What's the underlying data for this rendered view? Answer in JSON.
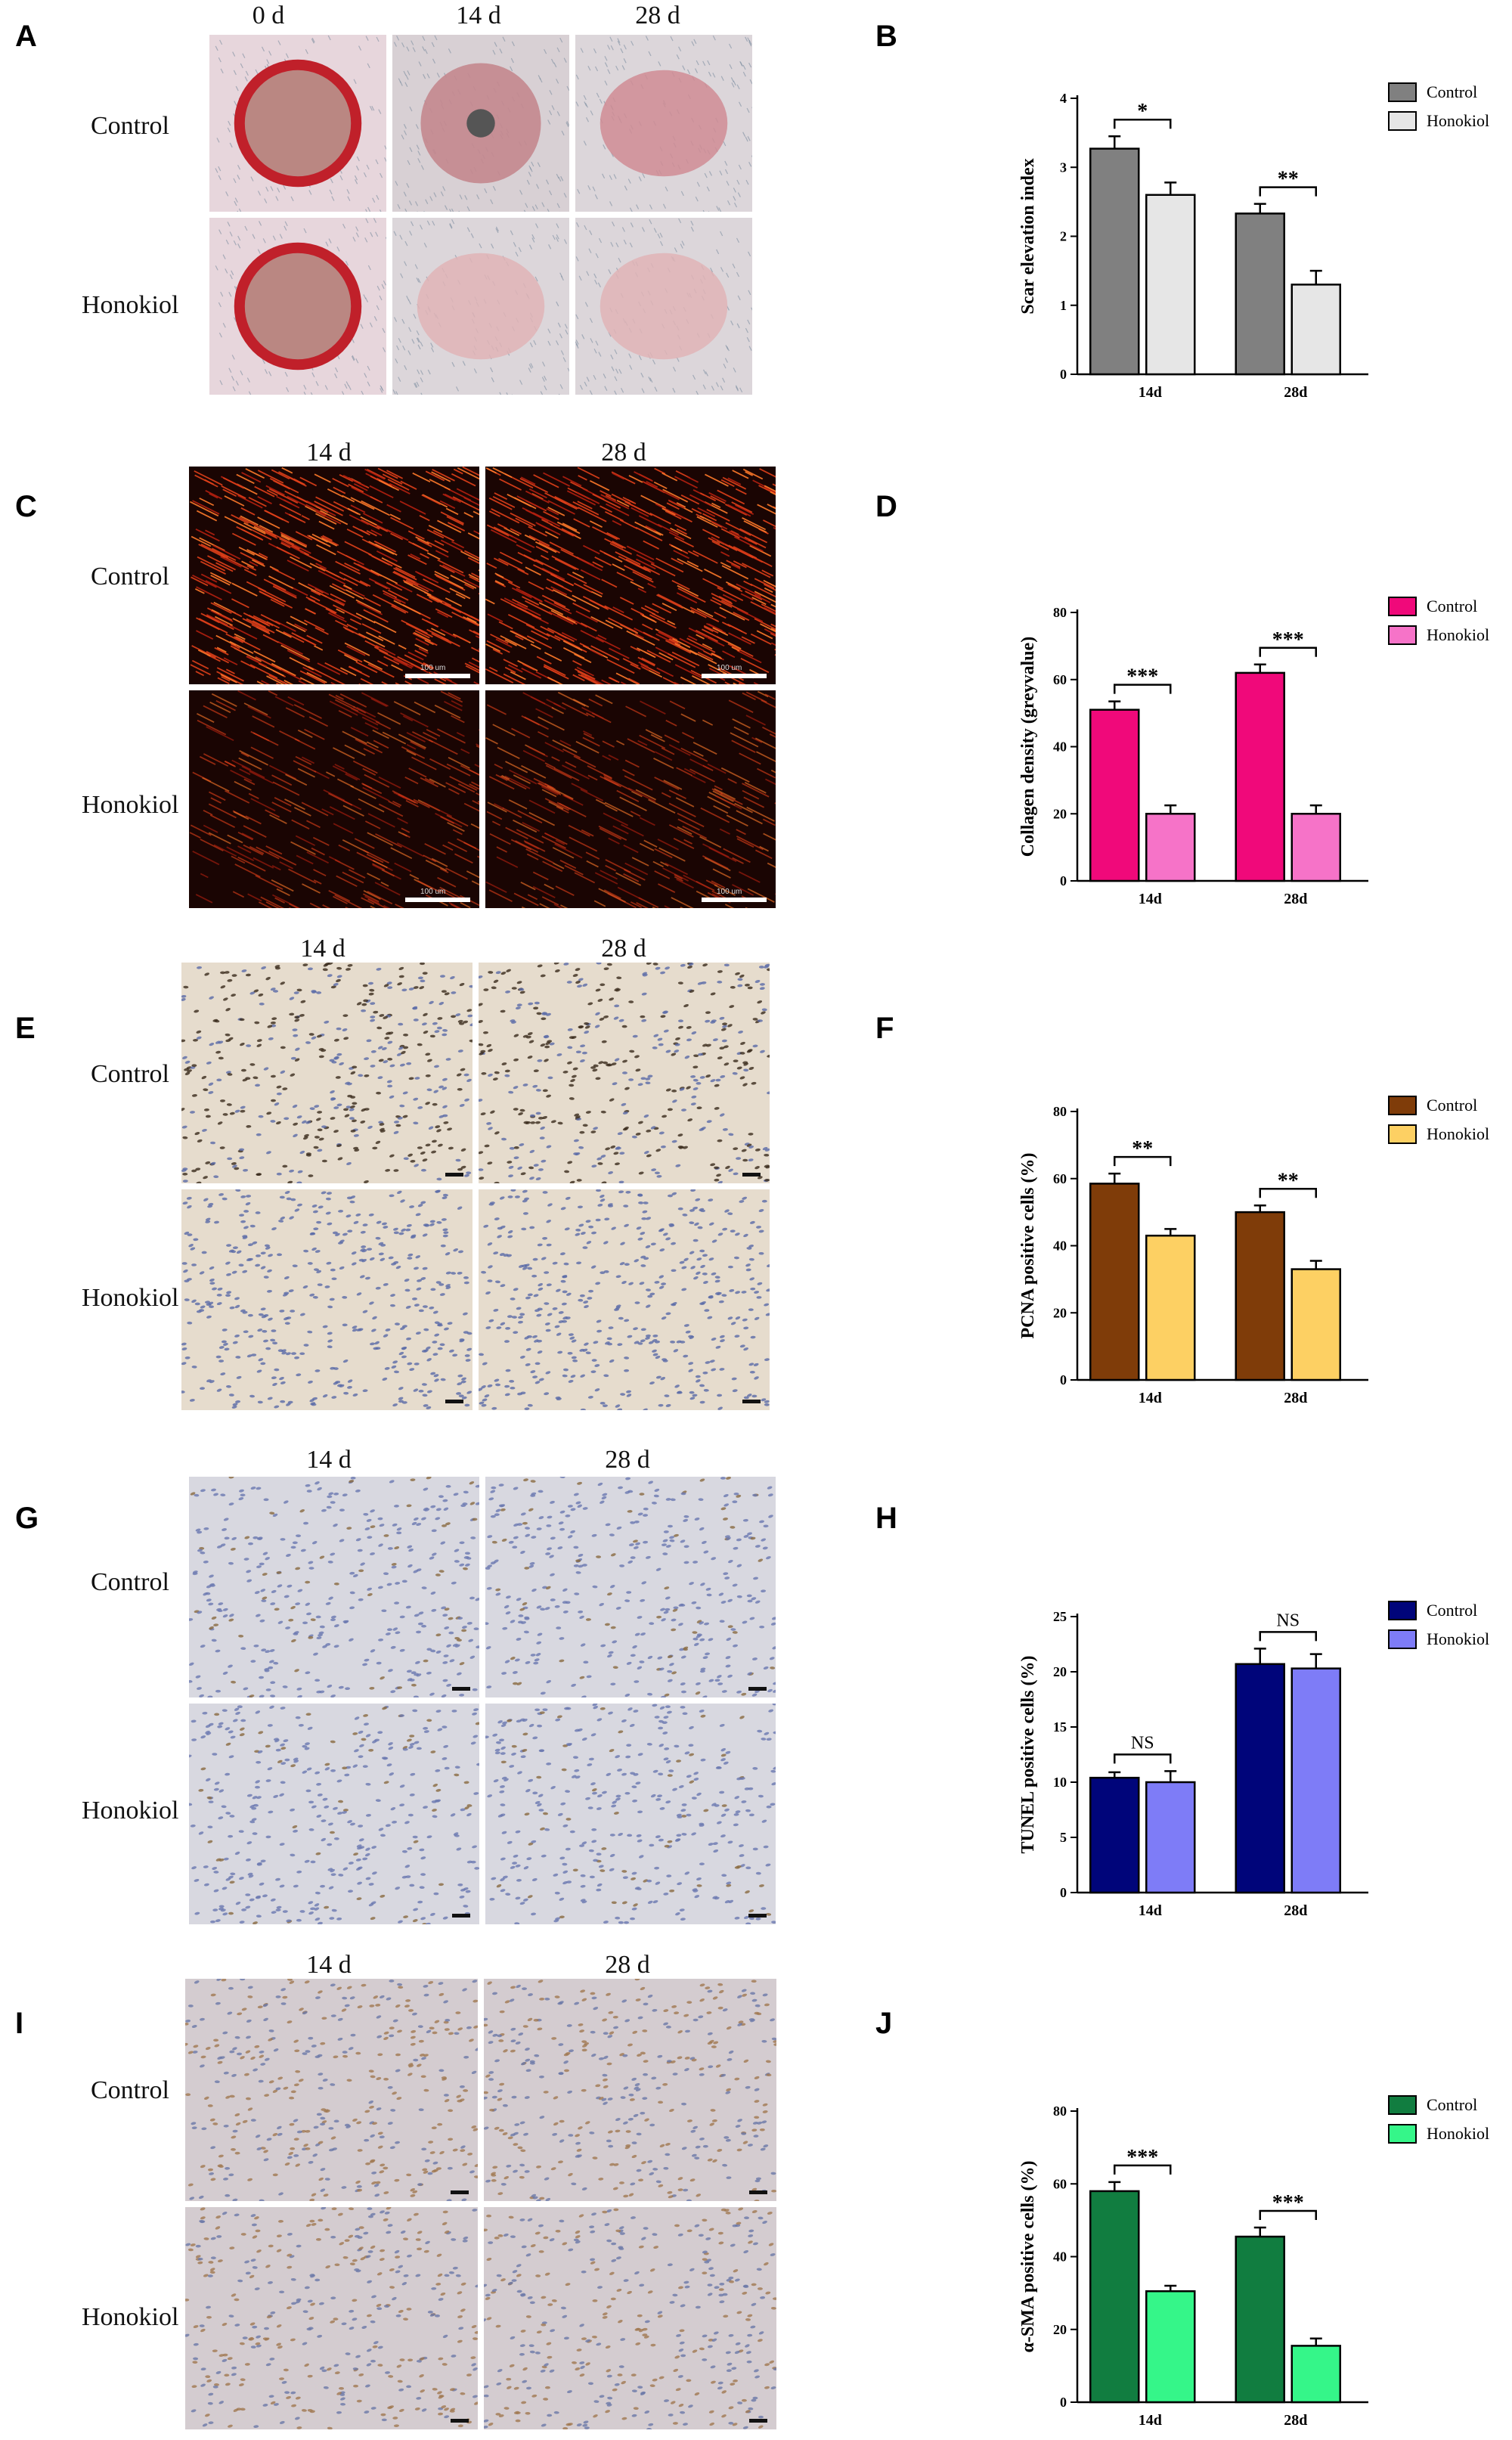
{
  "figure": {
    "day_heads_a": [
      "0 d",
      "14 d",
      "28 d"
    ],
    "day_heads": [
      "14 d",
      "28 d"
    ],
    "group_labels": [
      "Control",
      "Honokiol"
    ],
    "scale_label": "100 um"
  },
  "panels": [
    {
      "letter": "A",
      "kind": "photo",
      "style": "wound"
    },
    {
      "letter": "B",
      "kind": "chart",
      "chart_index": 0
    },
    {
      "letter": "C",
      "kind": "photo",
      "style": "collagen"
    },
    {
      "letter": "D",
      "kind": "chart",
      "chart_index": 1
    },
    {
      "letter": "E",
      "kind": "photo",
      "style": "pcna"
    },
    {
      "letter": "F",
      "kind": "chart",
      "chart_index": 2
    },
    {
      "letter": "G",
      "kind": "photo",
      "style": "tunel"
    },
    {
      "letter": "H",
      "kind": "chart",
      "chart_index": 3
    },
    {
      "letter": "I",
      "kind": "photo",
      "style": "sma"
    },
    {
      "letter": "J",
      "kind": "chart",
      "chart_index": 4
    }
  ],
  "chart_data": [
    {
      "type": "bar",
      "ylabel": "Scar elevation index",
      "categories": [
        "14d",
        "28d"
      ],
      "ylim": [
        0,
        4
      ],
      "yticks": [
        "0",
        "1",
        "2",
        "3",
        "4"
      ],
      "series": [
        {
          "name": "Control",
          "values": [
            3.27,
            2.33
          ],
          "errors": [
            0.18,
            0.14
          ],
          "color": "#808080"
        },
        {
          "name": "Honokiol",
          "values": [
            2.6,
            1.3
          ],
          "errors": [
            0.18,
            0.2
          ],
          "color": "#e6e6e6"
        }
      ],
      "significance": [
        "*",
        "**"
      ],
      "legend": "top-right"
    },
    {
      "type": "bar",
      "ylabel": "Collagen density (greyvalue)",
      "categories": [
        "14d",
        "28d"
      ],
      "ylim": [
        0,
        80
      ],
      "yticks": [
        "0",
        "20",
        "40",
        "60",
        "80"
      ],
      "series": [
        {
          "name": "Control",
          "values": [
            51,
            62
          ],
          "errors": [
            2.5,
            2.5
          ],
          "color": "#f0097a"
        },
        {
          "name": "Honokiol",
          "values": [
            20,
            20
          ],
          "errors": [
            2.5,
            2.5
          ],
          "color": "#f673c8"
        }
      ],
      "significance": [
        "***",
        "***"
      ],
      "legend": "top-right"
    },
    {
      "type": "bar",
      "ylabel": "PCNA positive cells (%)",
      "categories": [
        "14d",
        "28d"
      ],
      "ylim": [
        0,
        80
      ],
      "yticks": [
        "0",
        "20",
        "40",
        "60",
        "80"
      ],
      "series": [
        {
          "name": "Control",
          "values": [
            58.5,
            50
          ],
          "errors": [
            3,
            2
          ],
          "color": "#7f3c09"
        },
        {
          "name": "Honokiol",
          "values": [
            43,
            33
          ],
          "errors": [
            2,
            2.5
          ],
          "color": "#fdd063"
        }
      ],
      "significance": [
        "**",
        "**"
      ],
      "legend": "top-right"
    },
    {
      "type": "bar",
      "ylabel": "TUNEL positive cells (%)",
      "categories": [
        "14d",
        "28d"
      ],
      "ylim": [
        0,
        25
      ],
      "yticks": [
        "0",
        "5",
        "10",
        "15",
        "20",
        "25"
      ],
      "series": [
        {
          "name": "Control",
          "values": [
            10.4,
            20.7
          ],
          "errors": [
            0.5,
            1.4
          ],
          "color": "#00057a"
        },
        {
          "name": "Honokiol",
          "values": [
            10,
            20.3
          ],
          "errors": [
            1,
            1.3
          ],
          "color": "#7e7cf7"
        }
      ],
      "significance": [
        "NS",
        "NS"
      ],
      "legend": "top-right"
    },
    {
      "type": "bar",
      "ylabel": "α-SMA positive cells (%)",
      "categories": [
        "14d",
        "28d"
      ],
      "ylim": [
        0,
        80
      ],
      "yticks": [
        "0",
        "20",
        "40",
        "60",
        "80"
      ],
      "series": [
        {
          "name": "Control",
          "values": [
            58,
            45.5
          ],
          "errors": [
            2.5,
            2.5
          ],
          "color": "#117d40"
        },
        {
          "name": "Honokiol",
          "values": [
            30.5,
            15.5
          ],
          "errors": [
            1.5,
            2
          ],
          "color": "#35f689"
        }
      ],
      "significance": [
        "***",
        "***"
      ],
      "legend": "top-right"
    }
  ]
}
